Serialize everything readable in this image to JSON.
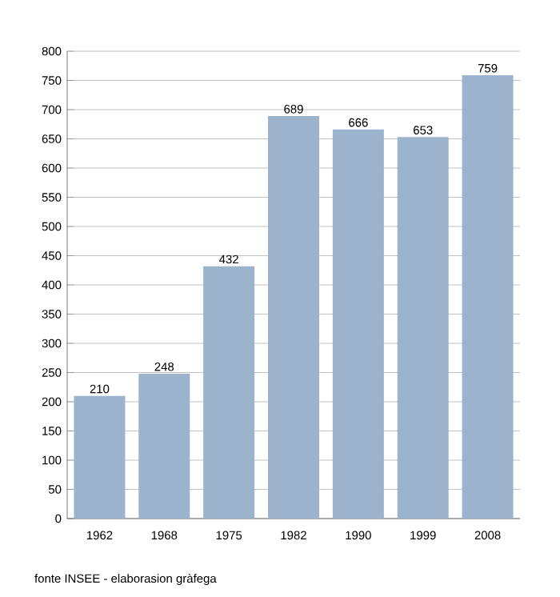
{
  "chart_data": {
    "type": "bar",
    "categories": [
      "1962",
      "1968",
      "1975",
      "1982",
      "1990",
      "1999",
      "2008"
    ],
    "values": [
      210,
      248,
      432,
      689,
      666,
      653,
      759
    ],
    "color": "#9bb3cc",
    "ylim": [
      0,
      800
    ],
    "yticks": [
      0,
      50,
      100,
      150,
      200,
      250,
      300,
      350,
      400,
      450,
      500,
      550,
      600,
      650,
      700,
      750,
      800
    ],
    "grid": "y",
    "data_labels": true,
    "annotations": [
      "fonte INSEE - elaborasion gràfega"
    ]
  }
}
